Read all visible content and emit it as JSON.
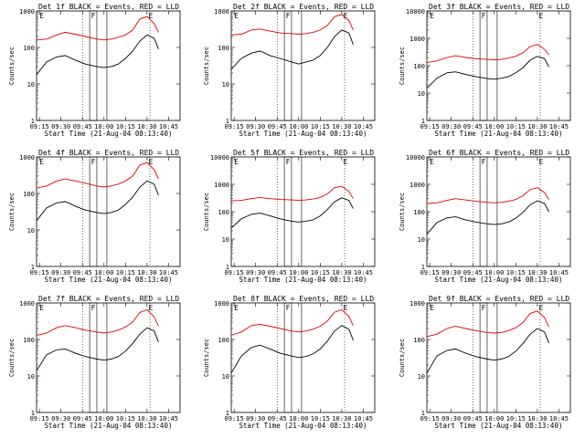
{
  "window": {
    "title": ""
  },
  "chart_data": [
    {
      "type": "line",
      "title": "Det 1f BLACK = Events, RED = LLD",
      "xlabel": "Start Time (21-Aug-04 08:13:40)",
      "ylabel": "Counts/sec",
      "yscale": "log",
      "ylim": [
        1,
        1000
      ],
      "xlim": [
        "09:13",
        "10:53"
      ],
      "x_tick_labels": [
        "09:15",
        "09:30",
        "09:45",
        "10:00",
        "10:15",
        "10:30",
        "10:45"
      ],
      "y_tick_labels": [
        "1",
        "10",
        "100",
        "1000"
      ],
      "markers": [
        "E",
        "F",
        "E"
      ],
      "series": [
        {
          "name": "RED = LLD",
          "color": "#e00000",
          "x": [
            "09:13",
            "09:20",
            "09:27",
            "09:33",
            "09:40",
            "09:47",
            "09:55",
            "10:00",
            "10:05",
            "10:10",
            "10:15",
            "10:20",
            "10:25",
            "10:30",
            "10:35",
            "10:38"
          ],
          "y": [
            160,
            170,
            220,
            260,
            230,
            200,
            170,
            160,
            170,
            190,
            220,
            300,
            600,
            700,
            450,
            260
          ]
        },
        {
          "name": "BLACK = Events",
          "color": "#000000",
          "x": [
            "09:13",
            "09:20",
            "09:27",
            "09:33",
            "09:40",
            "09:47",
            "09:55",
            "10:00",
            "10:05",
            "10:10",
            "10:15",
            "10:20",
            "10:25",
            "10:30",
            "10:35",
            "10:38"
          ],
          "y": [
            18,
            40,
            55,
            60,
            45,
            35,
            30,
            28,
            30,
            35,
            50,
            80,
            150,
            220,
            180,
            90
          ]
        }
      ]
    },
    {
      "type": "line",
      "title": "Det 2f BLACK = Events, RED = LLD",
      "xlabel": "Start Time (21-Aug-04 08:13:40)",
      "ylabel": "Counts/sec",
      "yscale": "log",
      "ylim": [
        1,
        1000
      ],
      "xlim": [
        "09:13",
        "10:53"
      ],
      "x_tick_labels": [
        "09:15",
        "09:30",
        "09:45",
        "10:00",
        "10:15",
        "10:30",
        "10:45"
      ],
      "y_tick_labels": [
        "1",
        "10",
        "100",
        "1000"
      ],
      "markers": [
        "E",
        "F",
        "E"
      ],
      "series": [
        {
          "name": "RED = LLD",
          "color": "#e00000",
          "x": [
            "09:13",
            "09:20",
            "09:27",
            "09:33",
            "09:40",
            "09:47",
            "09:55",
            "10:00",
            "10:05",
            "10:10",
            "10:15",
            "10:20",
            "10:25",
            "10:30",
            "10:35",
            "10:38"
          ],
          "y": [
            220,
            230,
            300,
            320,
            280,
            250,
            240,
            230,
            240,
            260,
            300,
            400,
            700,
            800,
            550,
            300
          ]
        },
        {
          "name": "BLACK = Events",
          "color": "#000000",
          "x": [
            "09:13",
            "09:20",
            "09:27",
            "09:33",
            "09:40",
            "09:47",
            "09:55",
            "10:00",
            "10:05",
            "10:10",
            "10:15",
            "10:20",
            "10:25",
            "10:30",
            "10:35",
            "10:38"
          ],
          "y": [
            25,
            50,
            70,
            80,
            60,
            50,
            40,
            35,
            40,
            45,
            60,
            100,
            200,
            300,
            250,
            120
          ]
        }
      ]
    },
    {
      "type": "line",
      "title": "Det 3f BLACK = Events, RED = LLD",
      "xlabel": "Start Time (21-Aug-04 08:13:40)",
      "ylabel": "Counts/sec",
      "yscale": "log",
      "ylim": [
        1,
        10000
      ],
      "xlim": [
        "09:13",
        "10:53"
      ],
      "x_tick_labels": [
        "09:15",
        "09:30",
        "09:45",
        "10:00",
        "10:15",
        "10:30",
        "10:45"
      ],
      "y_tick_labels": [
        "1",
        "10",
        "100",
        "1000",
        "10000"
      ],
      "markers": [
        "E",
        "F",
        "E"
      ],
      "series": [
        {
          "name": "RED = LLD",
          "color": "#e00000",
          "x": [
            "09:13",
            "09:20",
            "09:27",
            "09:33",
            "09:40",
            "09:47",
            "09:55",
            "10:00",
            "10:05",
            "10:10",
            "10:15",
            "10:20",
            "10:25",
            "10:30",
            "10:35",
            "10:38"
          ],
          "y": [
            130,
            150,
            200,
            230,
            200,
            180,
            170,
            165,
            170,
            190,
            220,
            300,
            500,
            600,
            400,
            250
          ]
        },
        {
          "name": "BLACK = Events",
          "color": "#000000",
          "x": [
            "09:13",
            "09:20",
            "09:27",
            "09:33",
            "09:40",
            "09:47",
            "09:55",
            "10:00",
            "10:05",
            "10:10",
            "10:15",
            "10:20",
            "10:25",
            "10:30",
            "10:35",
            "10:38"
          ],
          "y": [
            15,
            35,
            55,
            60,
            48,
            40,
            34,
            32,
            35,
            40,
            55,
            85,
            160,
            220,
            180,
            90
          ]
        }
      ]
    },
    {
      "type": "line",
      "title": "Det 4f BLACK = Events, RED = LLD",
      "xlabel": "Start Time (21-Aug-04 08:13:40)",
      "ylabel": "Counts/sec",
      "yscale": "log",
      "ylim": [
        1,
        1000
      ],
      "xlim": [
        "09:13",
        "10:53"
      ],
      "x_tick_labels": [
        "09:15",
        "09:30",
        "09:45",
        "10:00",
        "10:15",
        "10:30",
        "10:45"
      ],
      "y_tick_labels": [
        "1",
        "10",
        "100",
        "1000"
      ],
      "markers": [
        "E",
        "F",
        "E"
      ],
      "series": [
        {
          "name": "RED = LLD",
          "color": "#e00000",
          "x": [
            "09:13",
            "09:20",
            "09:27",
            "09:33",
            "09:40",
            "09:47",
            "09:55",
            "10:00",
            "10:05",
            "10:10",
            "10:15",
            "10:20",
            "10:25",
            "10:30",
            "10:35",
            "10:38"
          ],
          "y": [
            140,
            160,
            220,
            250,
            220,
            190,
            160,
            150,
            160,
            180,
            220,
            300,
            600,
            700,
            450,
            250
          ]
        },
        {
          "name": "BLACK = Events",
          "color": "#000000",
          "x": [
            "09:13",
            "09:20",
            "09:27",
            "09:33",
            "09:40",
            "09:47",
            "09:55",
            "10:00",
            "10:05",
            "10:10",
            "10:15",
            "10:20",
            "10:25",
            "10:30",
            "10:35",
            "10:38"
          ],
          "y": [
            18,
            40,
            55,
            60,
            45,
            35,
            30,
            28,
            30,
            35,
            50,
            80,
            150,
            220,
            180,
            90
          ]
        }
      ]
    },
    {
      "type": "line",
      "title": "Det 5f BLACK = Events, RED = LLD",
      "xlabel": "Start Time (21-Aug-04 08:13:40)",
      "ylabel": "Counts/sec",
      "yscale": "log",
      "ylim": [
        1,
        10000
      ],
      "xlim": [
        "09:13",
        "10:53"
      ],
      "x_tick_labels": [
        "09:15",
        "09:30",
        "09:45",
        "10:00",
        "10:15",
        "10:30",
        "10:45"
      ],
      "y_tick_labels": [
        "1",
        "10",
        "100",
        "1000",
        "10000"
      ],
      "markers": [
        "E",
        "F",
        "E"
      ],
      "series": [
        {
          "name": "RED = LLD",
          "color": "#e00000",
          "x": [
            "09:13",
            "09:20",
            "09:27",
            "09:33",
            "09:40",
            "09:47",
            "09:55",
            "10:00",
            "10:05",
            "10:10",
            "10:15",
            "10:20",
            "10:25",
            "10:30",
            "10:35",
            "10:38"
          ],
          "y": [
            250,
            260,
            300,
            330,
            300,
            280,
            270,
            260,
            270,
            290,
            330,
            450,
            750,
            850,
            550,
            300
          ]
        },
        {
          "name": "BLACK = Events",
          "color": "#000000",
          "x": [
            "09:13",
            "09:20",
            "09:27",
            "09:33",
            "09:40",
            "09:47",
            "09:55",
            "10:00",
            "10:05",
            "10:10",
            "10:15",
            "10:20",
            "10:25",
            "10:30",
            "10:35",
            "10:38"
          ],
          "y": [
            25,
            55,
            80,
            90,
            70,
            55,
            45,
            42,
            45,
            50,
            70,
            120,
            230,
            320,
            260,
            130
          ]
        }
      ]
    },
    {
      "type": "line",
      "title": "Det 6f BLACK = Events, RED = LLD",
      "xlabel": "Start Time (21-Aug-04 08:13:40)",
      "ylabel": "Counts/sec",
      "yscale": "log",
      "ylim": [
        1,
        10000
      ],
      "xlim": [
        "09:13",
        "10:53"
      ],
      "x_tick_labels": [
        "09:15",
        "09:30",
        "09:45",
        "10:00",
        "10:15",
        "10:30",
        "10:45"
      ],
      "y_tick_labels": [
        "1",
        "10",
        "100",
        "1000",
        "10000"
      ],
      "markers": [
        "E",
        "F",
        "E"
      ],
      "series": [
        {
          "name": "RED = LLD",
          "color": "#e00000",
          "x": [
            "09:13",
            "09:20",
            "09:27",
            "09:33",
            "09:40",
            "09:47",
            "09:55",
            "10:00",
            "10:05",
            "10:10",
            "10:15",
            "10:20",
            "10:25",
            "10:30",
            "10:35",
            "10:38"
          ],
          "y": [
            200,
            210,
            260,
            300,
            270,
            240,
            220,
            210,
            220,
            240,
            280,
            380,
            650,
            750,
            500,
            280
          ]
        },
        {
          "name": "BLACK = Events",
          "color": "#000000",
          "x": [
            "09:13",
            "09:20",
            "09:27",
            "09:33",
            "09:40",
            "09:47",
            "09:55",
            "10:00",
            "10:05",
            "10:10",
            "10:15",
            "10:20",
            "10:25",
            "10:30",
            "10:35",
            "10:38"
          ],
          "y": [
            15,
            40,
            60,
            65,
            50,
            42,
            36,
            34,
            36,
            42,
            58,
            95,
            180,
            250,
            200,
            100
          ]
        }
      ]
    },
    {
      "type": "line",
      "title": "Det 7f BLACK = Events, RED = LLD",
      "xlabel": "Start Time (21-Aug-04 08:13:40)",
      "ylabel": "Counts/sec",
      "yscale": "log",
      "ylim": [
        1,
        1000
      ],
      "xlim": [
        "09:13",
        "10:53"
      ],
      "x_tick_labels": [
        "09:15",
        "09:30",
        "09:45",
        "10:00",
        "10:15",
        "10:30",
        "10:45"
      ],
      "y_tick_labels": [
        "1",
        "10",
        "100",
        "1000"
      ],
      "markers": [
        "E",
        "F",
        "E"
      ],
      "series": [
        {
          "name": "RED = LLD",
          "color": "#e00000",
          "x": [
            "09:13",
            "09:20",
            "09:27",
            "09:33",
            "09:40",
            "09:47",
            "09:55",
            "10:00",
            "10:05",
            "10:10",
            "10:15",
            "10:20",
            "10:25",
            "10:30",
            "10:35",
            "10:38"
          ],
          "y": [
            130,
            150,
            210,
            240,
            210,
            180,
            160,
            150,
            160,
            180,
            220,
            300,
            550,
            650,
            420,
            230
          ]
        },
        {
          "name": "BLACK = Events",
          "color": "#000000",
          "x": [
            "09:13",
            "09:20",
            "09:27",
            "09:33",
            "09:40",
            "09:47",
            "09:55",
            "10:00",
            "10:05",
            "10:10",
            "10:15",
            "10:20",
            "10:25",
            "10:30",
            "10:35",
            "10:38"
          ],
          "y": [
            14,
            38,
            52,
            55,
            42,
            34,
            29,
            27,
            29,
            34,
            48,
            78,
            140,
            210,
            170,
            85
          ]
        }
      ]
    },
    {
      "type": "line",
      "title": "Det 8f BLACK = Events, RED = LLD",
      "xlabel": "Start Time (21-Aug-04 08:13:40)",
      "ylabel": "Counts/sec",
      "yscale": "log",
      "ylim": [
        1,
        1000
      ],
      "xlim": [
        "09:13",
        "10:53"
      ],
      "x_tick_labels": [
        "09:15",
        "09:30",
        "09:45",
        "10:00",
        "10:15",
        "10:30",
        "10:45"
      ],
      "y_tick_labels": [
        "1",
        "10",
        "100",
        "1000"
      ],
      "markers": [
        "E",
        "F",
        "E"
      ],
      "series": [
        {
          "name": "RED = LLD",
          "color": "#e00000",
          "x": [
            "09:13",
            "09:20",
            "09:27",
            "09:33",
            "09:40",
            "09:47",
            "09:55",
            "10:00",
            "10:05",
            "10:10",
            "10:15",
            "10:20",
            "10:25",
            "10:30",
            "10:35",
            "10:38"
          ],
          "y": [
            130,
            160,
            240,
            260,
            230,
            200,
            170,
            160,
            170,
            190,
            230,
            320,
            560,
            650,
            430,
            240
          ]
        },
        {
          "name": "BLACK = Events",
          "color": "#000000",
          "x": [
            "09:13",
            "09:20",
            "09:27",
            "09:33",
            "09:40",
            "09:47",
            "09:55",
            "10:00",
            "10:05",
            "10:10",
            "10:15",
            "10:20",
            "10:25",
            "10:30",
            "10:35",
            "10:38"
          ],
          "y": [
            12,
            35,
            60,
            70,
            55,
            42,
            35,
            32,
            34,
            40,
            55,
            90,
            170,
            240,
            190,
            95
          ]
        }
      ]
    },
    {
      "type": "line",
      "title": "Det 9f BLACK = Events, RED = LLD",
      "xlabel": "Start Time (21-Aug-04 08:13:40)",
      "ylabel": "Counts/sec",
      "yscale": "log",
      "ylim": [
        1,
        1000
      ],
      "xlim": [
        "09:13",
        "10:53"
      ],
      "x_tick_labels": [
        "09:15",
        "09:30",
        "09:45",
        "10:00",
        "10:15",
        "10:30",
        "10:45"
      ],
      "y_tick_labels": [
        "1",
        "10",
        "100",
        "1000"
      ],
      "markers": [
        "E",
        "F",
        "E"
      ],
      "series": [
        {
          "name": "RED = LLD",
          "color": "#e00000",
          "x": [
            "09:13",
            "09:20",
            "09:27",
            "09:33",
            "09:40",
            "09:47",
            "09:55",
            "10:00",
            "10:05",
            "10:10",
            "10:15",
            "10:20",
            "10:25",
            "10:30",
            "10:35",
            "10:38"
          ],
          "y": [
            120,
            140,
            200,
            230,
            200,
            175,
            155,
            150,
            155,
            175,
            210,
            290,
            520,
            600,
            400,
            220
          ]
        },
        {
          "name": "BLACK = Events",
          "color": "#000000",
          "x": [
            "09:13",
            "09:20",
            "09:27",
            "09:33",
            "09:40",
            "09:47",
            "09:55",
            "10:00",
            "10:05",
            "10:10",
            "10:15",
            "10:20",
            "10:25",
            "10:30",
            "10:35",
            "10:38"
          ],
          "y": [
            12,
            35,
            50,
            55,
            42,
            34,
            29,
            27,
            29,
            34,
            48,
            78,
            140,
            200,
            160,
            80
          ]
        }
      ]
    }
  ]
}
